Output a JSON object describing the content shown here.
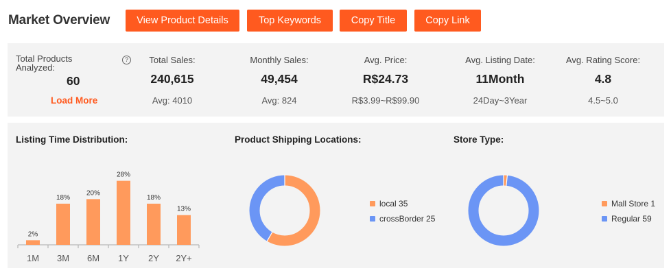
{
  "header": {
    "title": "Market Overview",
    "buttons": {
      "view_product_details": "View Product Details",
      "top_keywords": "Top Keywords",
      "copy_title": "Copy Title",
      "copy_link": "Copy Link"
    }
  },
  "stats": {
    "total_products": {
      "label": "Total Products Analyzed:",
      "value": "60",
      "action": "Load More",
      "help_icon": "?"
    },
    "total_sales": {
      "label": "Total Sales:",
      "value": "240,615",
      "sub": "Avg: 4010"
    },
    "monthly_sales": {
      "label": "Monthly Sales:",
      "value": "49,454",
      "sub": "Avg: 824"
    },
    "avg_price": {
      "label": "Avg. Price:",
      "value": "R$24.73",
      "sub": "R$3.99~R$99.90"
    },
    "avg_listing_date": {
      "label": "Avg. Listing Date:",
      "value": "11Month",
      "sub": "24Day~3Year"
    },
    "avg_rating": {
      "label": "Avg. Rating Score:",
      "value": "4.8",
      "sub": "4.5~5.0"
    }
  },
  "sections": {
    "listing_time": "Listing Time Distribution:",
    "shipping": "Product Shipping Locations:",
    "store_type": "Store Type:"
  },
  "colors": {
    "accent": "#ff5a1f",
    "bar": "#ff9a5c",
    "orange_slice": "#ff9a5c",
    "blue_slice": "#6b95f5"
  },
  "chart_data": [
    {
      "type": "bar",
      "title": "Listing Time Distribution:",
      "categories": [
        "1M",
        "3M",
        "6M",
        "1Y",
        "2Y",
        "2Y+"
      ],
      "values": [
        2,
        18,
        20,
        28,
        18,
        13
      ],
      "data_labels": [
        "2%",
        "18%",
        "20%",
        "28%",
        "18%",
        "13%"
      ],
      "ylim": [
        0,
        30
      ],
      "grid": false
    },
    {
      "type": "pie",
      "title": "Product Shipping Locations:",
      "labels": [
        "local",
        "crossBorder"
      ],
      "values": [
        35,
        25
      ],
      "legend_labels": [
        "local 35",
        "crossBorder 25"
      ],
      "legend": "right"
    },
    {
      "type": "pie",
      "title": "Store Type:",
      "labels": [
        "Mall Store",
        "Regular"
      ],
      "values": [
        1,
        59
      ],
      "legend_labels": [
        "Mall Store 1",
        "Regular 59"
      ],
      "legend": "right"
    }
  ]
}
